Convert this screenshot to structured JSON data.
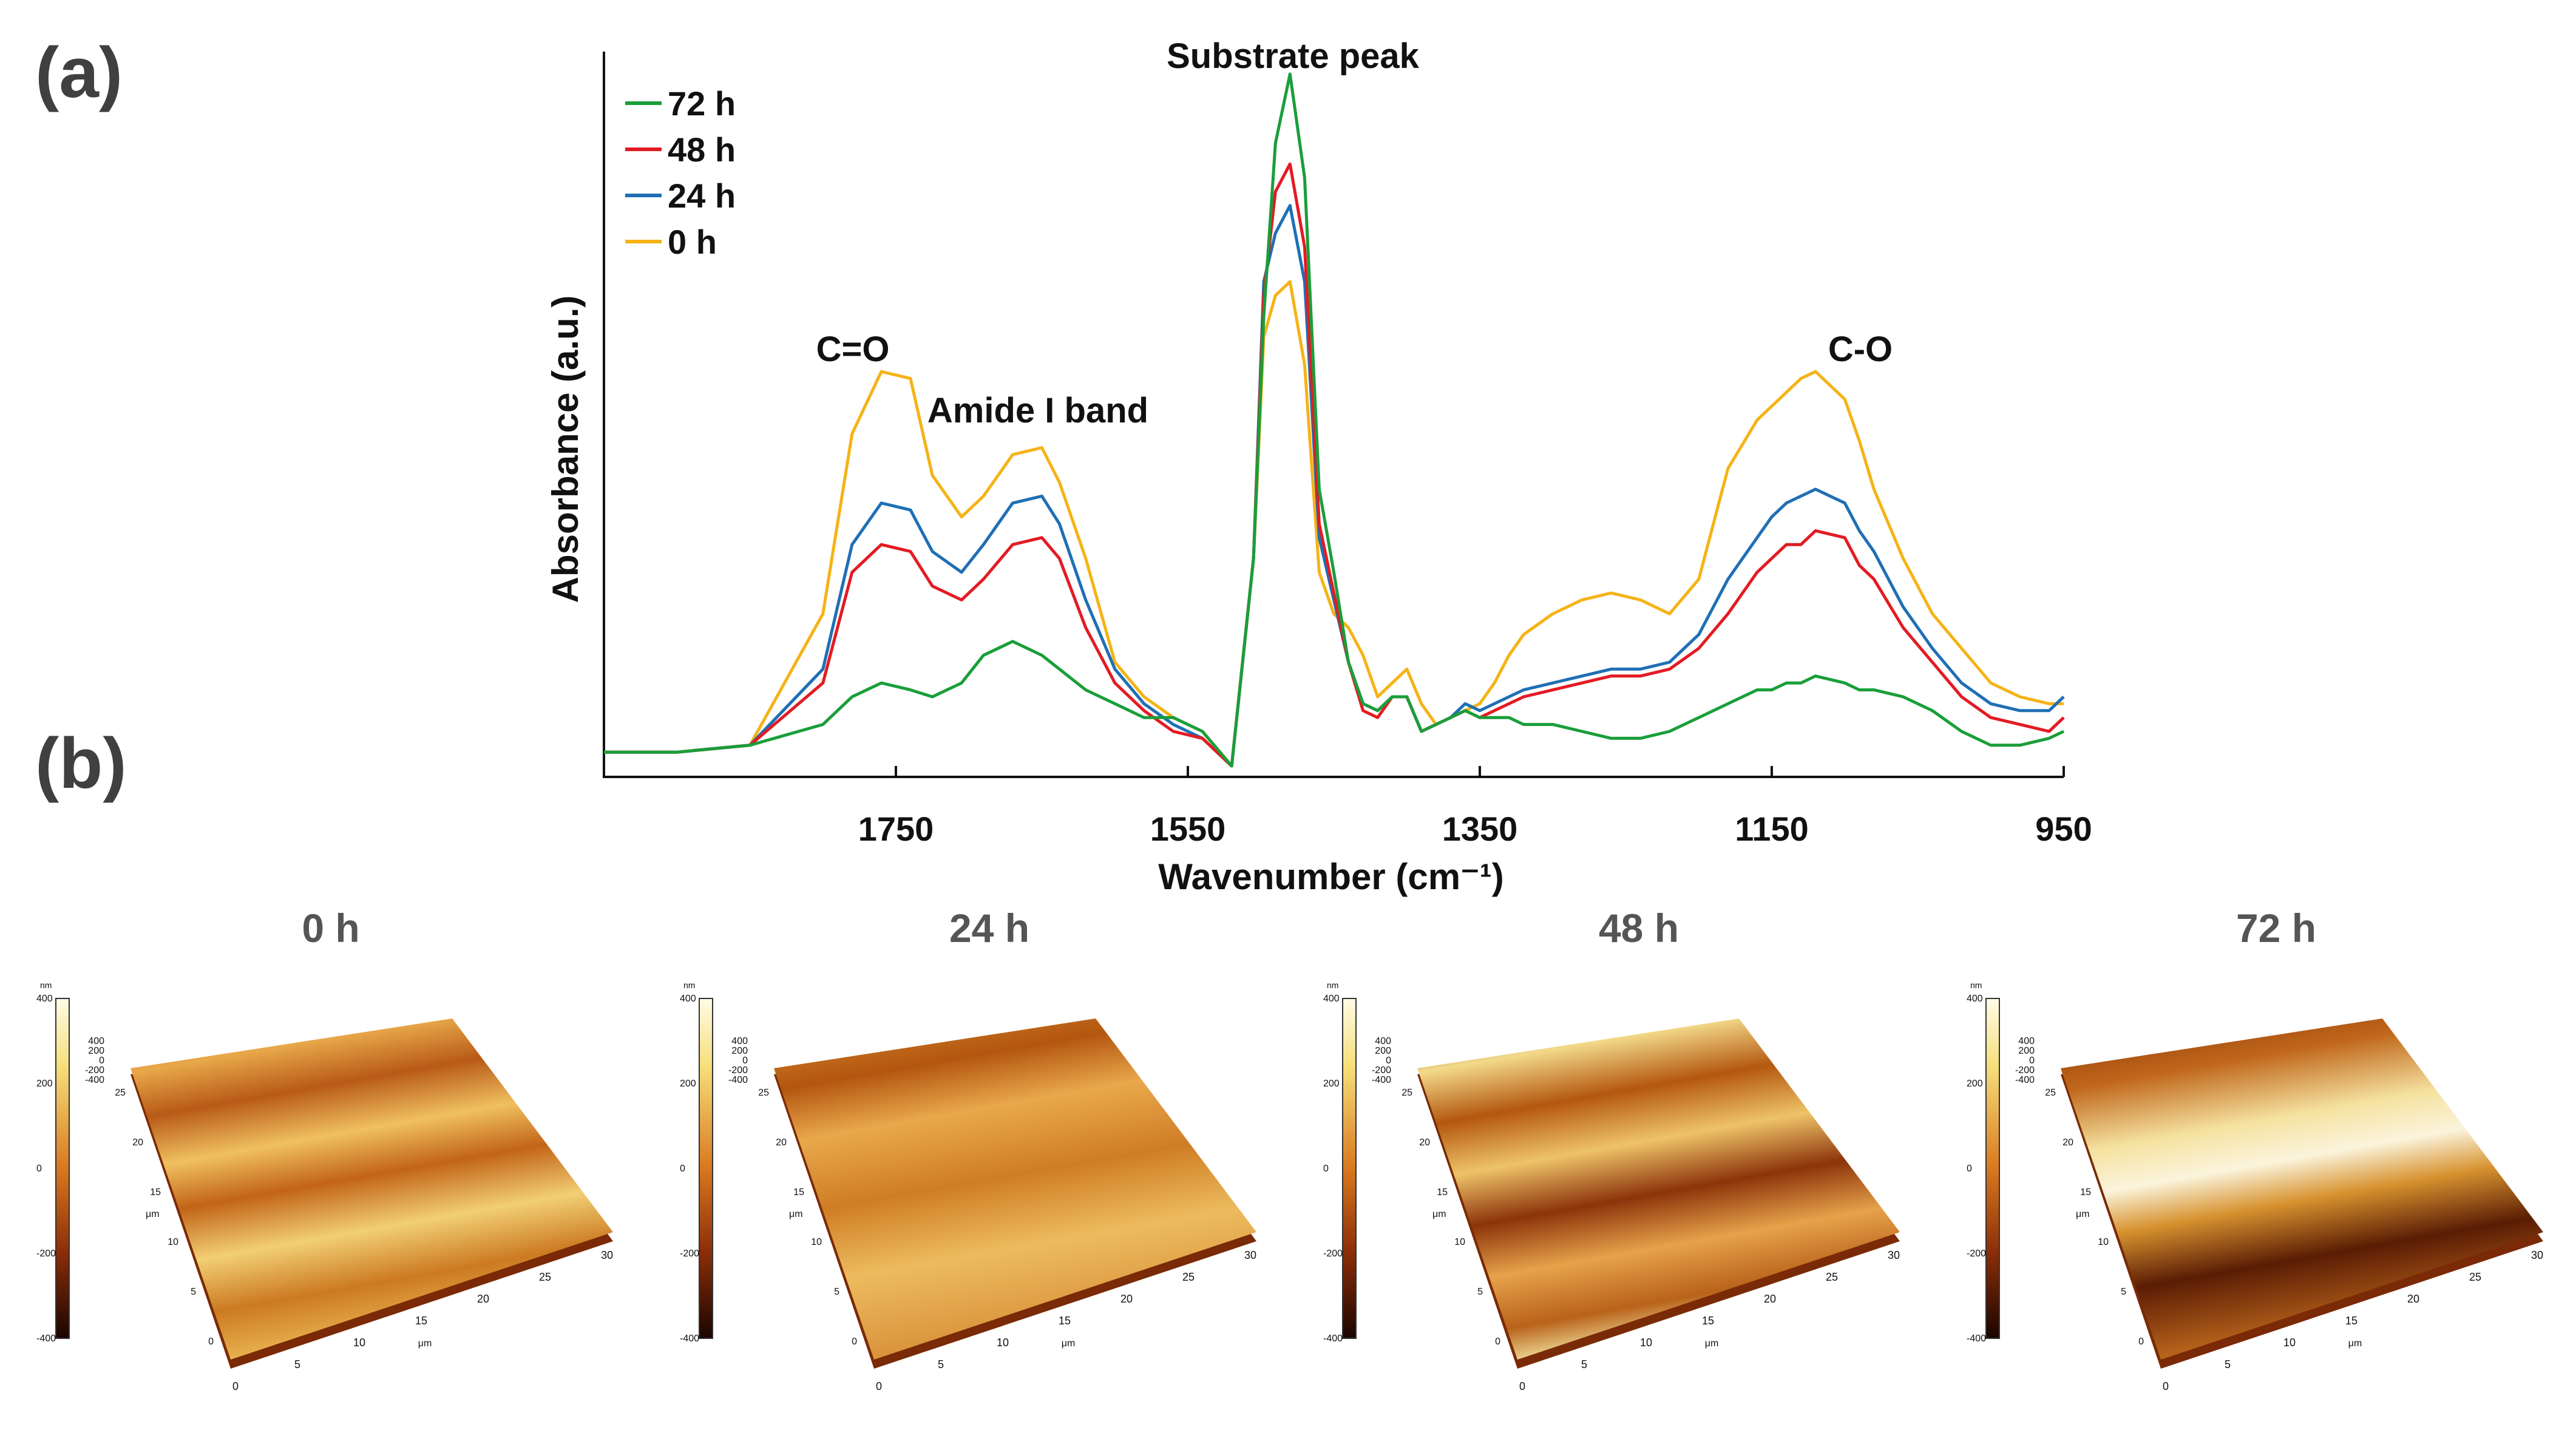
{
  "panel_labels": {
    "a": "(a)",
    "b": "(b)"
  },
  "chart_data": {
    "type": "line",
    "title": "",
    "xlabel": "Wavenumber (cm⁻¹)",
    "ylabel": "Absorbance (a.u.)",
    "xlim": [
      1950,
      950
    ],
    "ylim": [
      0,
      1.0
    ],
    "x_ticks": [
      {
        "value": 1750,
        "label": "1750"
      },
      {
        "value": 1550,
        "label": "1550"
      },
      {
        "value": 1350,
        "label": "1350"
      },
      {
        "value": 1150,
        "label": "1150"
      },
      {
        "value": 950,
        "label": "950"
      }
    ],
    "legend_position": "top-left",
    "annotations": [
      {
        "text": "Substrate peak",
        "x": 1440,
        "y": 1.0
      },
      {
        "text": "C=O",
        "x": 1738,
        "y": 0.62
      },
      {
        "text": "Amide I band",
        "x": 1630,
        "y": 0.53
      },
      {
        "text": "C-O",
        "x": 1070,
        "y": 0.62
      }
    ],
    "x": [
      1950,
      1900,
      1850,
      1800,
      1780,
      1760,
      1740,
      1725,
      1705,
      1690,
      1670,
      1650,
      1638,
      1620,
      1600,
      1580,
      1560,
      1540,
      1520,
      1505,
      1498,
      1490,
      1480,
      1470,
      1460,
      1450,
      1440,
      1430,
      1420,
      1410,
      1400,
      1390,
      1380,
      1370,
      1360,
      1350,
      1340,
      1330,
      1320,
      1300,
      1280,
      1260,
      1240,
      1220,
      1200,
      1180,
      1160,
      1150,
      1140,
      1130,
      1120,
      1100,
      1090,
      1080,
      1060,
      1040,
      1020,
      1000,
      980,
      960,
      950
    ],
    "series": [
      {
        "name": "72 h",
        "color": "#1a9e3a",
        "values": [
          0.02,
          0.02,
          0.03,
          0.06,
          0.1,
          0.12,
          0.11,
          0.1,
          0.12,
          0.16,
          0.18,
          0.16,
          0.14,
          0.11,
          0.09,
          0.07,
          0.07,
          0.05,
          0.0,
          0.3,
          0.65,
          0.9,
          1.0,
          0.85,
          0.4,
          0.28,
          0.15,
          0.09,
          0.08,
          0.1,
          0.1,
          0.05,
          0.06,
          0.07,
          0.08,
          0.07,
          0.07,
          0.07,
          0.06,
          0.06,
          0.05,
          0.04,
          0.04,
          0.05,
          0.07,
          0.09,
          0.11,
          0.11,
          0.12,
          0.12,
          0.13,
          0.12,
          0.11,
          0.11,
          0.1,
          0.08,
          0.05,
          0.03,
          0.03,
          0.04,
          0.05
        ]
      },
      {
        "name": "48 h",
        "color": "#e31b23",
        "values": [
          0.02,
          0.02,
          0.03,
          0.12,
          0.28,
          0.32,
          0.31,
          0.26,
          0.24,
          0.27,
          0.32,
          0.33,
          0.3,
          0.2,
          0.12,
          0.08,
          0.05,
          0.04,
          0.0,
          0.3,
          0.68,
          0.83,
          0.87,
          0.75,
          0.35,
          0.25,
          0.15,
          0.08,
          0.07,
          0.1,
          0.1,
          0.05,
          0.06,
          0.07,
          0.08,
          0.07,
          0.08,
          0.09,
          0.1,
          0.11,
          0.12,
          0.13,
          0.13,
          0.14,
          0.17,
          0.22,
          0.28,
          0.3,
          0.32,
          0.32,
          0.34,
          0.33,
          0.29,
          0.27,
          0.2,
          0.15,
          0.1,
          0.07,
          0.06,
          0.05,
          0.07
        ]
      },
      {
        "name": "24 h",
        "color": "#1f6fb5",
        "values": [
          0.02,
          0.02,
          0.03,
          0.14,
          0.32,
          0.38,
          0.37,
          0.31,
          0.28,
          0.32,
          0.38,
          0.39,
          0.35,
          0.24,
          0.14,
          0.09,
          0.06,
          0.04,
          0.0,
          0.3,
          0.7,
          0.77,
          0.81,
          0.7,
          0.33,
          0.24,
          0.15,
          0.09,
          0.08,
          0.1,
          0.1,
          0.05,
          0.06,
          0.07,
          0.09,
          0.08,
          0.09,
          0.1,
          0.11,
          0.12,
          0.13,
          0.14,
          0.14,
          0.15,
          0.19,
          0.27,
          0.33,
          0.36,
          0.38,
          0.39,
          0.4,
          0.38,
          0.34,
          0.31,
          0.23,
          0.17,
          0.12,
          0.09,
          0.08,
          0.08,
          0.1
        ]
      },
      {
        "name": "0 h",
        "color": "#f5b316",
        "values": [
          0.02,
          0.02,
          0.03,
          0.22,
          0.48,
          0.57,
          0.56,
          0.42,
          0.36,
          0.39,
          0.45,
          0.46,
          0.41,
          0.3,
          0.15,
          0.1,
          0.07,
          0.05,
          0.0,
          0.3,
          0.62,
          0.68,
          0.7,
          0.58,
          0.28,
          0.22,
          0.2,
          0.16,
          0.1,
          0.12,
          0.14,
          0.09,
          0.06,
          0.07,
          0.08,
          0.09,
          0.12,
          0.16,
          0.19,
          0.22,
          0.24,
          0.25,
          0.24,
          0.22,
          0.27,
          0.43,
          0.5,
          0.52,
          0.54,
          0.56,
          0.57,
          0.53,
          0.47,
          0.4,
          0.3,
          0.22,
          0.17,
          0.12,
          0.1,
          0.09,
          0.09
        ]
      }
    ]
  },
  "afm_panels": [
    {
      "title": "0 h",
      "scale_unit": "nm",
      "scale_top": "400",
      "scale_ticks": [
        "200",
        "0",
        "-200",
        "-400"
      ],
      "z_ticks": [
        "400",
        "200",
        "0",
        "-200",
        "-400"
      ],
      "axis_unit": "μm",
      "x_ticks": [
        "0",
        "5",
        "10",
        "15",
        "20",
        "25",
        "30"
      ],
      "y_ticks": [
        "0",
        "5",
        "10",
        "15",
        "20",
        "25"
      ],
      "fill": "a"
    },
    {
      "title": "24 h",
      "scale_unit": "nm",
      "scale_top": "400",
      "scale_ticks": [
        "200",
        "0",
        "-200",
        "-400"
      ],
      "z_ticks": [
        "400",
        "200",
        "0",
        "-200",
        "-400"
      ],
      "axis_unit": "μm",
      "x_ticks": [
        "0",
        "5",
        "10",
        "15",
        "20",
        "25",
        "30"
      ],
      "y_ticks": [
        "0",
        "5",
        "10",
        "15",
        "20",
        "25"
      ],
      "fill": "b"
    },
    {
      "title": "48 h",
      "scale_unit": "nm",
      "scale_top": "400",
      "scale_ticks": [
        "200",
        "0",
        "-200",
        "-400"
      ],
      "z_ticks": [
        "400",
        "200",
        "0",
        "-200",
        "-400"
      ],
      "axis_unit": "μm",
      "x_ticks": [
        "0",
        "5",
        "10",
        "15",
        "20",
        "25",
        "30"
      ],
      "y_ticks": [
        "0",
        "5",
        "10",
        "15",
        "20",
        "25"
      ],
      "fill": "c"
    },
    {
      "title": "72 h",
      "scale_unit": "nm",
      "scale_top": "400",
      "scale_ticks": [
        "200",
        "0",
        "-200",
        "-400"
      ],
      "z_ticks": [
        "400",
        "200",
        "0",
        "-200",
        "-400"
      ],
      "axis_unit": "μm",
      "x_ticks": [
        "0",
        "5",
        "10",
        "15",
        "20",
        "25",
        "30"
      ],
      "y_ticks": [
        "0",
        "5",
        "10",
        "15",
        "20",
        "25"
      ],
      "fill": "d"
    }
  ]
}
